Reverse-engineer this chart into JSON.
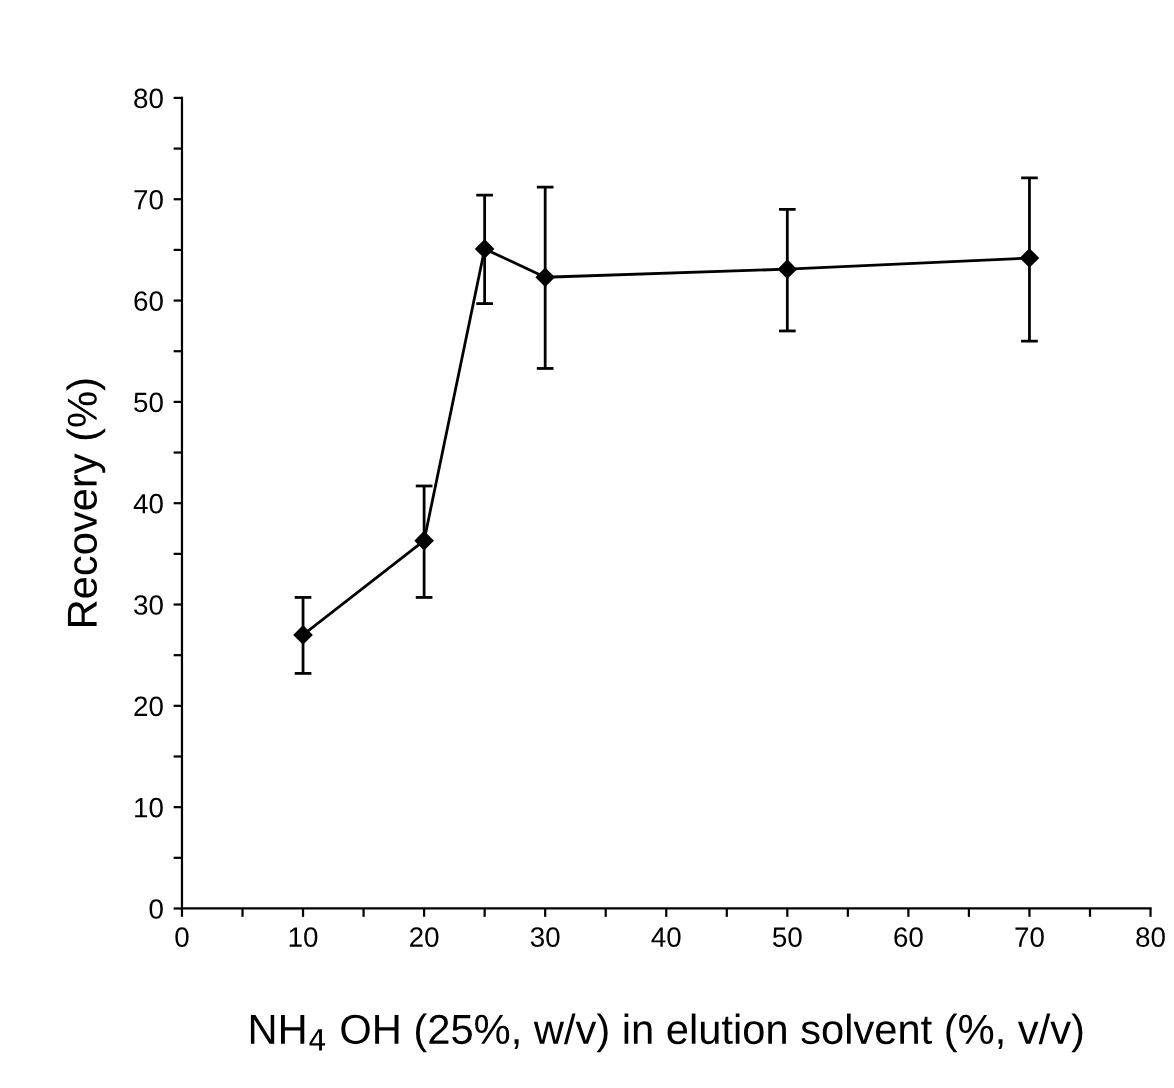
{
  "chart_data": {
    "type": "line",
    "xlabel": "NH$_{4}$ OH (25%, w/v) in elution solvent (%, v/v)",
    "ylabel": "Recovery (%)",
    "x": [
      10,
      20,
      25,
      30,
      50,
      70
    ],
    "series": [
      {
        "color": "#000000",
        "values": [
          27.0,
          36.3,
          65.1,
          62.3,
          63.1,
          64.2
        ],
        "errors": [
          [
            23.2,
            30.7
          ],
          [
            30.7,
            41.7
          ],
          [
            59.7,
            70.4
          ],
          [
            53.3,
            71.2
          ],
          [
            57.0,
            69.0
          ],
          [
            56.0,
            72.1
          ]
        ]
      }
    ],
    "xlim": [
      0,
      80
    ],
    "ylim": [
      0,
      80
    ],
    "xticks": [
      0,
      {
        "value": 5,
        "label": null
      },
      10,
      {
        "value": 15,
        "label": null
      },
      20,
      {
        "value": 25,
        "label": null
      },
      30,
      {
        "value": 35,
        "label": null
      },
      40,
      {
        "value": 45,
        "label": null
      },
      50,
      {
        "value": 55,
        "label": null
      },
      60,
      {
        "value": 65,
        "label": null
      },
      70,
      {
        "value": 75,
        "label": null
      },
      80
    ],
    "yticks": [
      0,
      {
        "value": 5,
        "label": null
      },
      10,
      {
        "value": 15,
        "label": null
      },
      20,
      {
        "value": 25,
        "label": null
      },
      30,
      {
        "value": 35,
        "label": null
      },
      40,
      {
        "value": 45,
        "label": null
      },
      50,
      {
        "value": 55,
        "label": null
      },
      60,
      {
        "value": 65,
        "label": null
      },
      70,
      {
        "value": 75,
        "label": null
      },
      80
    ],
    "marker": "diamond",
    "line_style": "solid",
    "grid": false,
    "legend": false
  }
}
